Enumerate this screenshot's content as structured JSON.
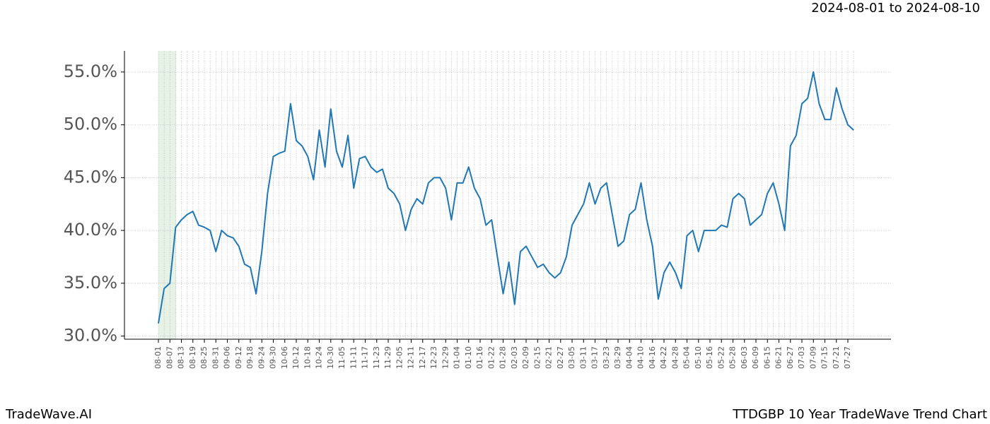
{
  "header": "2024-08-01 to 2024-08-10",
  "footer": {
    "left": "TradeWave.AI",
    "right": "TTDGBP 10 Year TradeWave Trend Chart"
  },
  "chart_data": {
    "type": "line",
    "categories": [
      "08-01",
      null,
      "08-07",
      null,
      "08-13",
      null,
      "08-19",
      null,
      "08-25",
      null,
      "08-31",
      null,
      "09-06",
      null,
      "09-12",
      null,
      "09-18",
      null,
      "09-24",
      null,
      "09-30",
      null,
      "10-06",
      null,
      "10-12",
      null,
      "10-18",
      null,
      "10-24",
      null,
      "10-30",
      null,
      "11-05",
      null,
      "11-11",
      null,
      "11-17",
      null,
      "11-23",
      null,
      "11-29",
      null,
      "12-05",
      null,
      "12-11",
      null,
      "12-17",
      null,
      "12-23",
      null,
      "12-29",
      null,
      "01-04",
      null,
      "01-10",
      null,
      "01-16",
      null,
      "01-22",
      null,
      "01-28",
      null,
      "02-03",
      null,
      "02-09",
      null,
      "02-15",
      null,
      "02-21",
      null,
      "02-27",
      null,
      "03-05",
      null,
      "03-11",
      null,
      "03-17",
      null,
      "03-23",
      null,
      "03-29",
      null,
      "04-04",
      null,
      "04-10",
      null,
      "04-16",
      null,
      "04-22",
      null,
      "04-28",
      null,
      "05-04",
      null,
      "05-10",
      null,
      "05-16",
      null,
      "05-22",
      null,
      "05-28",
      null,
      "06-03",
      null,
      "06-09",
      null,
      "06-15",
      null,
      "06-21",
      null,
      "06-27",
      null,
      "07-03",
      null,
      "07-09",
      null,
      "07-15",
      null,
      "07-21",
      null,
      "07-27",
      null
    ],
    "series": [
      {
        "color": "#1f77b4",
        "values": [
          31.2,
          34.5,
          35.0,
          40.3,
          41.0,
          41.5,
          41.8,
          40.5,
          40.3,
          40.0,
          38.0,
          40.0,
          39.5,
          39.3,
          38.5,
          36.8,
          36.5,
          34.0,
          38.0,
          43.5,
          47.0,
          47.3,
          47.5,
          52.0,
          48.5,
          48.0,
          47.0,
          44.8,
          49.5,
          46.0,
          51.5,
          47.5,
          46.0,
          49.0,
          44.0,
          46.8,
          47.0,
          46.0,
          45.5,
          45.8,
          44.0,
          43.5,
          42.5,
          40.0,
          42.0,
          43.0,
          42.5,
          44.5,
          45.0,
          45.0,
          44.0,
          41.0,
          44.5,
          44.5,
          46.0,
          44.0,
          43.0,
          40.5,
          41.0,
          37.5,
          34.0,
          37.0,
          33.0,
          38.0,
          38.5,
          37.5,
          36.5,
          36.8,
          36.0,
          35.5,
          36.0,
          37.5,
          40.5,
          41.5,
          42.5,
          44.5,
          42.5,
          44.0,
          44.5,
          41.5,
          38.5,
          39.0,
          41.5,
          42.0,
          44.5,
          41.0,
          38.5,
          33.5,
          36.0,
          37.0,
          36.0,
          34.5,
          39.5,
          40.0,
          38.0,
          40.0,
          40.0,
          40.0,
          40.5,
          40.3,
          43.0,
          43.5,
          43.0,
          40.5,
          41.0,
          41.5,
          43.5,
          44.5,
          42.5,
          40.0,
          48.0,
          49.0,
          52.0,
          52.5,
          55.0,
          52.0,
          50.5,
          50.5,
          53.5,
          51.5,
          50.0,
          49.5
        ]
      }
    ],
    "ylim": [
      29.7,
      57.0
    ],
    "yticks": [
      {
        "value": 30,
        "label": "30.0%"
      },
      {
        "value": 35,
        "label": "35.0%"
      },
      {
        "value": 40,
        "label": "40.0%"
      },
      {
        "value": 45,
        "label": "45.0%"
      },
      {
        "value": 50,
        "label": "50.0%"
      },
      {
        "value": 55,
        "label": "55.0%"
      }
    ],
    "grid": true
  }
}
